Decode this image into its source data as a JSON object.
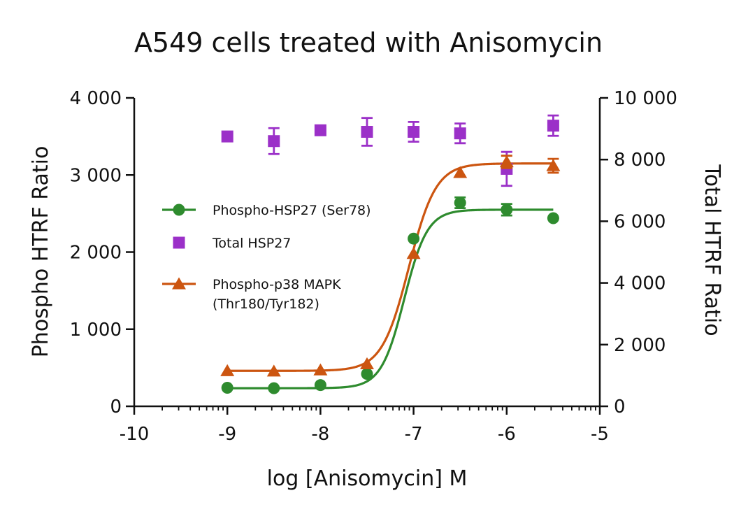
{
  "chart_data": {
    "type": "scatter",
    "title": "A549 cells treated with Anisomycin",
    "xlabel": "log [Anisomycin] M",
    "ylabel_left": "Phospho HTRF Ratio",
    "ylabel_right": "Total HTRF Ratio",
    "xlim": [
      -10,
      -5
    ],
    "ylim_left": [
      0,
      4000
    ],
    "ylim_right": [
      0,
      10000
    ],
    "x_ticks": [
      "-10",
      "-9",
      "-8",
      "-7",
      "-6",
      "-5"
    ],
    "y_left_ticks": [
      "0",
      "1 000",
      "2 000",
      "3 000",
      "4 000"
    ],
    "y_right_ticks": [
      "0",
      "2 000",
      "4 000",
      "6 000",
      "8 000",
      "10 000"
    ],
    "grid": false,
    "legend_position": "left",
    "series": [
      {
        "name": "Phospho-HSP27 (Ser78)",
        "color": "#2e8b2e",
        "marker": "circle",
        "axis": "left",
        "x": [
          -9,
          -8.5,
          -8,
          -7.5,
          -7,
          -6.5,
          -6,
          -5.5
        ],
        "y": [
          240,
          235,
          275,
          420,
          2175,
          2640,
          2550,
          2440
        ],
        "err": [
          0,
          0,
          0,
          0,
          0,
          70,
          75,
          0
        ],
        "fit": {
          "bottom": 235,
          "top": 2550,
          "logEC50": -7.1,
          "hill": 3.5
        }
      },
      {
        "name": "Total HSP27",
        "color": "#9b30c8",
        "marker": "square",
        "axis": "right",
        "x": [
          -9,
          -8.5,
          -8,
          -7.5,
          -7,
          -6.5,
          -6,
          -5.5
        ],
        "y": [
          8750,
          8600,
          8950,
          8900,
          8900,
          8850,
          7700,
          9100
        ],
        "err": [
          0,
          420,
          0,
          450,
          320,
          320,
          550,
          330
        ]
      },
      {
        "name": "Phospho-p38 MAPK\n(Thr180/Tyr182)",
        "label_lines": [
          "Phospho-p38 MAPK",
          "(Thr180/Tyr182)"
        ],
        "color": "#cc5510",
        "marker": "triangle",
        "axis": "left",
        "x": [
          -9,
          -8.5,
          -8,
          -7.5,
          -7,
          -6.5,
          -6,
          -5.5
        ],
        "y": [
          460,
          455,
          470,
          550,
          1980,
          3030,
          3170,
          3120
        ],
        "err": [
          0,
          0,
          0,
          0,
          0,
          0,
          80,
          90
        ],
        "fit": {
          "bottom": 460,
          "top": 3150,
          "logEC50": -7.05,
          "hill": 3.0
        }
      }
    ]
  }
}
